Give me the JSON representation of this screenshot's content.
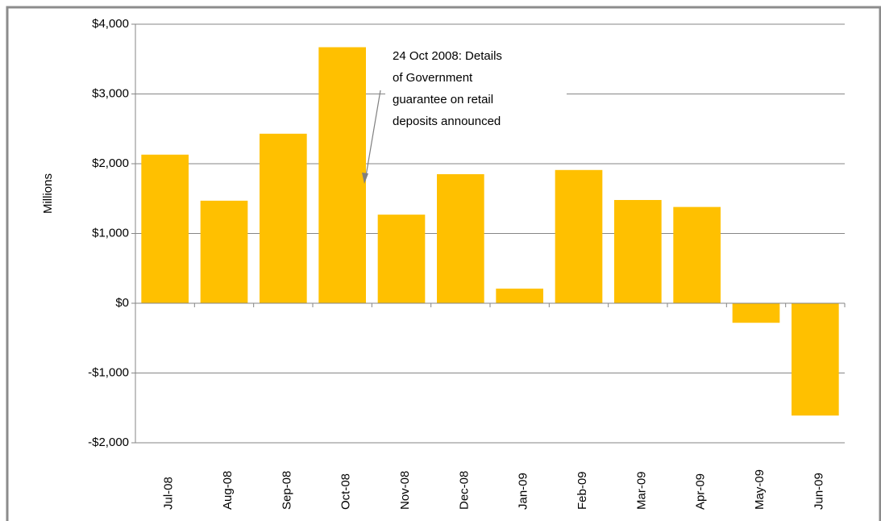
{
  "chart_data": {
    "type": "bar",
    "y_label": "Millions",
    "categories": [
      "Jul-08",
      "Aug-08",
      "Sep-08",
      "Oct-08",
      "Nov-08",
      "Dec-08",
      "Jan-09",
      "Feb-09",
      "Mar-09",
      "Apr-09",
      "May-09",
      "Jun-09"
    ],
    "values": [
      2130,
      1470,
      2430,
      3670,
      1270,
      1850,
      210,
      1910,
      1480,
      1380,
      -280,
      -1610
    ],
    "color": "#ffc000",
    "ylim": [
      -2000,
      4000
    ],
    "yticks": [
      {
        "value": -2000,
        "label": "-$2,000"
      },
      {
        "value": -1000,
        "label": "-$1,000"
      },
      {
        "value": 0,
        "label": "$0"
      },
      {
        "value": 1000,
        "label": "$1,000"
      },
      {
        "value": 2000,
        "label": "$2,000"
      },
      {
        "value": 3000,
        "label": "$3,000"
      },
      {
        "value": 4000,
        "label": "$4,000"
      }
    ],
    "grid": true,
    "annotation": {
      "lines": [
        "24 Oct 2008:  Details",
        "of Government",
        "guarantee on retail",
        "deposits announced"
      ]
    }
  }
}
